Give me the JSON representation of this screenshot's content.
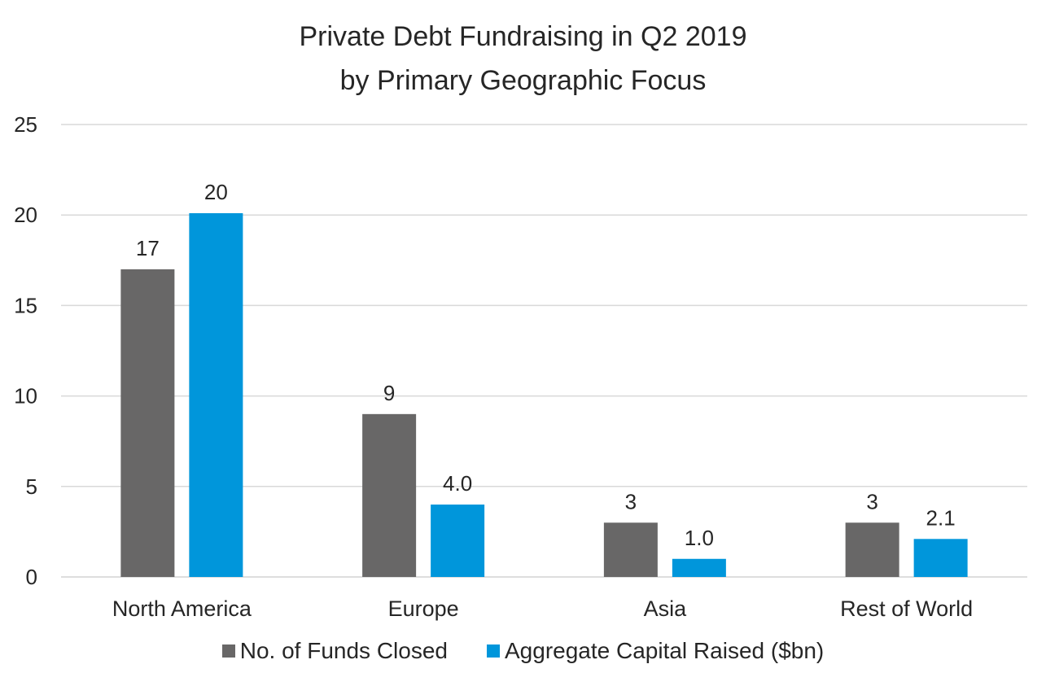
{
  "chart_data": {
    "type": "bar",
    "title_lines": [
      "Private Debt Fundraising in Q2 2019",
      "by Primary Geographic Focus"
    ],
    "categories": [
      "North America",
      "Europe",
      "Asia",
      "Rest of World"
    ],
    "series": [
      {
        "name": "No. of Funds Closed",
        "values": [
          17,
          9,
          3,
          3
        ],
        "labels": [
          "17",
          "9",
          "3",
          "3"
        ],
        "color": "#686767"
      },
      {
        "name": "Aggregate Capital Raised ($bn)",
        "values": [
          20.1,
          4.0,
          1.0,
          2.1
        ],
        "labels": [
          "20",
          "4.0",
          "1.0",
          "2.1"
        ],
        "color": "#0096DB"
      }
    ],
    "yticks": [
      "0",
      "5",
      "10",
      "15",
      "20",
      "25"
    ],
    "ylim": [
      0,
      25
    ],
    "grid": true,
    "legend_position": "bottom"
  }
}
